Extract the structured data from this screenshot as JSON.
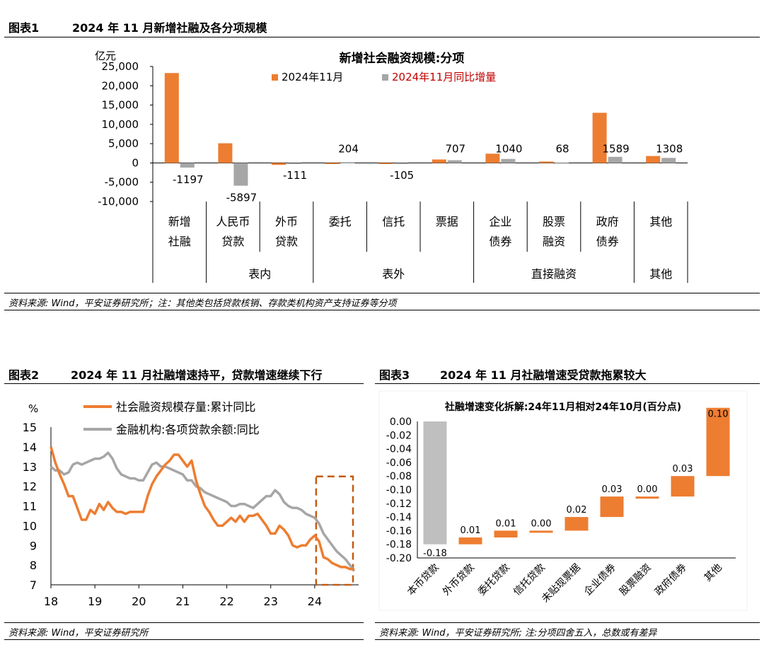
{
  "fig1": {
    "label": "图表1",
    "title": "2024 年 11 月新增社融及各分项规模",
    "source": "资料来源: Wind，平安证券研究所；注：其他类包括贷款核销、存款类机构资产支持证券等分项"
  },
  "fig2": {
    "label": "图表2",
    "title": "2024 年 11 月社融增速持平，贷款增速继续下行",
    "source": "资料来源: Wind，平安证券研究所"
  },
  "fig3": {
    "label": "图表3",
    "title": "2024 年 11 月社融增速受贷款拖累较大",
    "source": "资料来源: Wind，平安证券研究所; 注:分项四舍五入，总数或有差异"
  },
  "chart_data": [
    {
      "type": "bar",
      "title": "新增社会融资规模:分项",
      "ylabel": "亿元",
      "ylim": [
        -10000,
        25000
      ],
      "yticks": [
        "-10,000",
        "-5,000",
        "0",
        "5,000",
        "10,000",
        "15,000",
        "20,000",
        "25,000"
      ],
      "categories": [
        "新增\n社融",
        "人民币\n贷款",
        "外币\n贷款",
        "委托",
        "信托",
        "票据",
        "企业\n债券",
        "股票\n融资",
        "政府\n债券",
        "其他"
      ],
      "groups": [
        {
          "label": "表内",
          "span": [
            1,
            2
          ]
        },
        {
          "label": "表外",
          "span": [
            3,
            5
          ]
        },
        {
          "label": "直接融资",
          "span": [
            6,
            8
          ]
        },
        {
          "label": "其他",
          "span": [
            9,
            9
          ]
        }
      ],
      "series": [
        {
          "name": "2024年11月",
          "color": "#ED7D31",
          "values": [
            23300,
            5100,
            -500,
            -50,
            -50,
            900,
            2400,
            370,
            13000,
            1800
          ]
        },
        {
          "name": "2024年11月同比增量",
          "color": "#A6A6A6",
          "values": [
            -1197,
            -5897,
            -111,
            204,
            -105,
            707,
            1040,
            68,
            1589,
            1308
          ]
        }
      ],
      "data_labels": [
        "-1197",
        "-5897",
        "-111",
        "204",
        "-105",
        "707",
        "1040",
        "68",
        "1589",
        "1308"
      ],
      "legend": "top"
    },
    {
      "type": "line",
      "ylabel": "%",
      "ylim": [
        7,
        15
      ],
      "yticks": [
        "7",
        "8",
        "9",
        "10",
        "11",
        "12",
        "13",
        "14",
        "15"
      ],
      "xticks": [
        "18",
        "19",
        "20",
        "21",
        "22",
        "23",
        "24"
      ],
      "x_range": [
        2018.0,
        2025.0
      ],
      "highlight_box": {
        "x": [
          2024.0,
          2025.0
        ],
        "y": [
          7.0,
          12.5
        ]
      },
      "series": [
        {
          "name": "社会融资规模存量:累计同比",
          "color": "#ED7D31",
          "points": [
            [
              2018.0,
              14.0
            ],
            [
              2018.1,
              13.2
            ],
            [
              2018.2,
              12.6
            ],
            [
              2018.3,
              12.1
            ],
            [
              2018.4,
              11.5
            ],
            [
              2018.5,
              11.5
            ],
            [
              2018.6,
              10.9
            ],
            [
              2018.7,
              10.3
            ],
            [
              2018.8,
              10.3
            ],
            [
              2018.9,
              10.8
            ],
            [
              2019.0,
              10.6
            ],
            [
              2019.1,
              11.1
            ],
            [
              2019.2,
              10.8
            ],
            [
              2019.3,
              11.2
            ],
            [
              2019.4,
              10.9
            ],
            [
              2019.5,
              10.7
            ],
            [
              2019.6,
              10.7
            ],
            [
              2019.7,
              10.6
            ],
            [
              2019.8,
              10.7
            ],
            [
              2019.9,
              10.7
            ],
            [
              2020.0,
              10.7
            ],
            [
              2020.1,
              10.7
            ],
            [
              2020.2,
              11.5
            ],
            [
              2020.3,
              12.1
            ],
            [
              2020.4,
              12.5
            ],
            [
              2020.5,
              12.8
            ],
            [
              2020.6,
              13.1
            ],
            [
              2020.7,
              13.3
            ],
            [
              2020.8,
              13.6
            ],
            [
              2020.9,
              13.6
            ],
            [
              2021.0,
              13.3
            ],
            [
              2021.1,
              13.0
            ],
            [
              2021.2,
              13.3
            ],
            [
              2021.3,
              12.3
            ],
            [
              2021.4,
              11.6
            ],
            [
              2021.5,
              11.0
            ],
            [
              2021.6,
              10.7
            ],
            [
              2021.7,
              10.3
            ],
            [
              2021.8,
              10.0
            ],
            [
              2021.9,
              10.0
            ],
            [
              2022.0,
              10.2
            ],
            [
              2022.1,
              10.4
            ],
            [
              2022.2,
              10.2
            ],
            [
              2022.3,
              10.5
            ],
            [
              2022.4,
              10.2
            ],
            [
              2022.5,
              10.5
            ],
            [
              2022.6,
              10.5
            ],
            [
              2022.7,
              10.6
            ],
            [
              2022.8,
              10.3
            ],
            [
              2022.9,
              10.0
            ],
            [
              2023.0,
              9.6
            ],
            [
              2023.1,
              9.6
            ],
            [
              2023.2,
              10.0
            ],
            [
              2023.3,
              9.8
            ],
            [
              2023.4,
              9.5
            ],
            [
              2023.5,
              9.0
            ],
            [
              2023.6,
              8.9
            ],
            [
              2023.7,
              9.0
            ],
            [
              2023.8,
              9.0
            ],
            [
              2023.9,
              9.3
            ],
            [
              2024.0,
              9.5
            ],
            [
              2024.1,
              9.2
            ],
            [
              2024.2,
              8.4
            ],
            [
              2024.3,
              8.3
            ],
            [
              2024.4,
              8.1
            ],
            [
              2024.5,
              8.0
            ],
            [
              2024.6,
              7.9
            ],
            [
              2024.7,
              7.9
            ],
            [
              2024.8,
              7.8
            ],
            [
              2024.9,
              7.8
            ]
          ]
        },
        {
          "name": "金融机构:各项贷款余额:同比",
          "color": "#A6A6A6",
          "points": [
            [
              2018.0,
              13.0
            ],
            [
              2018.1,
              12.8
            ],
            [
              2018.2,
              12.8
            ],
            [
              2018.3,
              12.6
            ],
            [
              2018.4,
              12.7
            ],
            [
              2018.5,
              13.1
            ],
            [
              2018.6,
              13.2
            ],
            [
              2018.7,
              13.1
            ],
            [
              2018.8,
              13.2
            ],
            [
              2018.9,
              13.3
            ],
            [
              2019.0,
              13.4
            ],
            [
              2019.1,
              13.4
            ],
            [
              2019.2,
              13.5
            ],
            [
              2019.3,
              13.7
            ],
            [
              2019.4,
              13.4
            ],
            [
              2019.5,
              12.9
            ],
            [
              2019.6,
              12.6
            ],
            [
              2019.7,
              12.5
            ],
            [
              2019.8,
              12.4
            ],
            [
              2019.9,
              12.4
            ],
            [
              2020.0,
              12.3
            ],
            [
              2020.1,
              12.3
            ],
            [
              2020.2,
              12.7
            ],
            [
              2020.3,
              13.1
            ],
            [
              2020.4,
              13.2
            ],
            [
              2020.5,
              13.0
            ],
            [
              2020.6,
              13.0
            ],
            [
              2020.7,
              12.9
            ],
            [
              2020.8,
              12.8
            ],
            [
              2020.9,
              12.7
            ],
            [
              2021.0,
              12.6
            ],
            [
              2021.1,
              12.3
            ],
            [
              2021.2,
              12.3
            ],
            [
              2021.3,
              12.0
            ],
            [
              2021.4,
              11.9
            ],
            [
              2021.5,
              11.7
            ],
            [
              2021.6,
              11.6
            ],
            [
              2021.7,
              11.5
            ],
            [
              2021.8,
              11.4
            ],
            [
              2021.9,
              11.3
            ],
            [
              2022.0,
              11.2
            ],
            [
              2022.1,
              11.0
            ],
            [
              2022.2,
              11.0
            ],
            [
              2022.3,
              11.1
            ],
            [
              2022.4,
              11.1
            ],
            [
              2022.5,
              11.0
            ],
            [
              2022.6,
              10.9
            ],
            [
              2022.7,
              11.1
            ],
            [
              2022.8,
              11.3
            ],
            [
              2022.9,
              11.5
            ],
            [
              2023.0,
              11.5
            ],
            [
              2023.1,
              11.8
            ],
            [
              2023.2,
              11.6
            ],
            [
              2023.3,
              11.2
            ],
            [
              2023.4,
              11.0
            ],
            [
              2023.5,
              10.9
            ],
            [
              2023.6,
              10.9
            ],
            [
              2023.7,
              10.8
            ],
            [
              2023.8,
              10.6
            ],
            [
              2023.9,
              10.5
            ],
            [
              2024.0,
              10.4
            ],
            [
              2024.1,
              10.1
            ],
            [
              2024.2,
              9.6
            ],
            [
              2024.3,
              9.3
            ],
            [
              2024.4,
              9.0
            ],
            [
              2024.5,
              8.7
            ],
            [
              2024.6,
              8.5
            ],
            [
              2024.7,
              8.3
            ],
            [
              2024.8,
              8.0
            ],
            [
              2024.9,
              7.7
            ]
          ]
        }
      ],
      "legend": "top"
    },
    {
      "type": "bar",
      "subtype": "waterfall",
      "title": "社融增速变化拆解:24年11月相对24年10月(百分点)",
      "ylim": [
        -0.2,
        0.0
      ],
      "yticks": [
        "-0.20",
        "-0.18",
        "-0.16",
        "-0.14",
        "-0.12",
        "-0.10",
        "-0.08",
        "-0.06",
        "-0.04",
        "-0.02",
        "0.00"
      ],
      "categories": [
        "本币贷款",
        "外币贷款",
        "委托贷款",
        "信托贷款",
        "未贴现票据",
        "企业债券",
        "股票融资",
        "政府债券",
        "其他"
      ],
      "values": [
        -0.18,
        0.01,
        0.01,
        0.0,
        0.02,
        0.03,
        0.0,
        0.03,
        0.1
      ],
      "value_labels": [
        "-0.18",
        "0.01",
        "0.01",
        "0.00",
        "0.02",
        "0.03",
        "0.00",
        "0.03",
        "0.10"
      ],
      "colors": {
        "start": "#BFBFBF",
        "step": "#ED7D31"
      }
    }
  ]
}
